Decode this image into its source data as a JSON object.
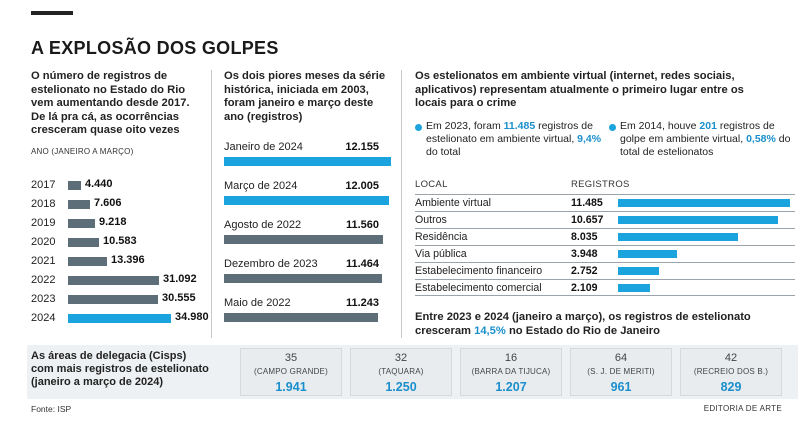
{
  "title": "A EXPLOSÃO DOS GOLPES",
  "colors": {
    "accent": "#1aa3dd",
    "gray_bar": "#5d6e78",
    "highlight_text": "#1a8fcc"
  },
  "chart_data": [
    {
      "type": "bar",
      "orientation": "horizontal",
      "intro": "O número de registros de estelionato no Estado do Rio vem aumentando desde 2017. De lá pra cá, as ocorrências cresceram quase oito vezes",
      "axis_note": "ANO (JANEIRO A MARÇO)",
      "categories": [
        "2017",
        "2018",
        "2019",
        "2020",
        "2021",
        "2022",
        "2023",
        "2024"
      ],
      "values": [
        4440,
        7606,
        9218,
        10583,
        13396,
        31092,
        30555,
        34980
      ],
      "value_labels": [
        "4.440",
        "7.606",
        "9.218",
        "10.583",
        "13.396",
        "31.092",
        "30.555",
        "34.980"
      ],
      "highlight_index": 7,
      "xlim": [
        0,
        35000
      ]
    },
    {
      "type": "bar",
      "orientation": "horizontal",
      "intro": "Os dois piores meses da série histórica, iniciada em 2003, foram janeiro e março deste ano (registros)",
      "categories": [
        "Janeiro de 2024",
        "Março de 2024",
        "Agosto de 2022",
        "Dezembro de 2023",
        "Maio de 2022"
      ],
      "values": [
        12155,
        12005,
        11560,
        11464,
        11243
      ],
      "value_labels": [
        "12.155",
        "12.005",
        "11.560",
        "11.464",
        "11.243"
      ],
      "highlight_indices": [
        0,
        1
      ],
      "xlim": [
        0,
        12155
      ]
    },
    {
      "type": "bar",
      "orientation": "horizontal",
      "intro": "Os estelionatos em ambiente virtual (internet, redes sociais, aplicativos) representam atualmente o primeiro lugar entre os locais para o crime",
      "column_headers": [
        "LOCAL",
        "REGISTROS"
      ],
      "categories": [
        "Ambiente virtual",
        "Outros",
        "Residência",
        "Via pública",
        "Estabelecimento financeiro",
        "Estabelecimento comercial"
      ],
      "values": [
        11485,
        10657,
        8035,
        3948,
        2752,
        2109
      ],
      "value_labels": [
        "11.485",
        "10.657",
        "8.035",
        "3.948",
        "2.752",
        "2.109"
      ],
      "xlim": [
        0,
        11485
      ]
    }
  ],
  "bullets": [
    {
      "pre": "Em 2023, foram ",
      "hl1": "11.485",
      "mid": " registros de estelionato em ambiente virtual, ",
      "hl2": "9,4%",
      "post": " do total"
    },
    {
      "pre": "Em 2014, houve ",
      "hl1": "201",
      "mid": " registros de golpe em ambiente virtual, ",
      "hl2": "0,58%",
      "post": " do total de estelionatos"
    }
  ],
  "growth": {
    "pre": "Entre 2023 e 2024 (janeiro a março), os registros de estelionato cresceram ",
    "hl": "14,5%",
    "post": " no Estado do Rio de Janeiro"
  },
  "cisps": {
    "title": "As áreas de delegacia (Cisps) com mais registros de estelionato (janeiro a março de 2024)",
    "items": [
      {
        "number": "35",
        "name": "(CAMPO GRANDE)",
        "count": "1.941"
      },
      {
        "number": "32",
        "name": "(TAQUARA)",
        "count": "1.250"
      },
      {
        "number": "16",
        "name": "(BARRA DA TIJUCA)",
        "count": "1.207"
      },
      {
        "number": "64",
        "name": "(S. J. DE MERITI)",
        "count": "961"
      },
      {
        "number": "42",
        "name": "(RECREIO DOS B.)",
        "count": "829"
      }
    ]
  },
  "source": "Fonte: ISP",
  "credit": "EDITORIA DE ARTE"
}
